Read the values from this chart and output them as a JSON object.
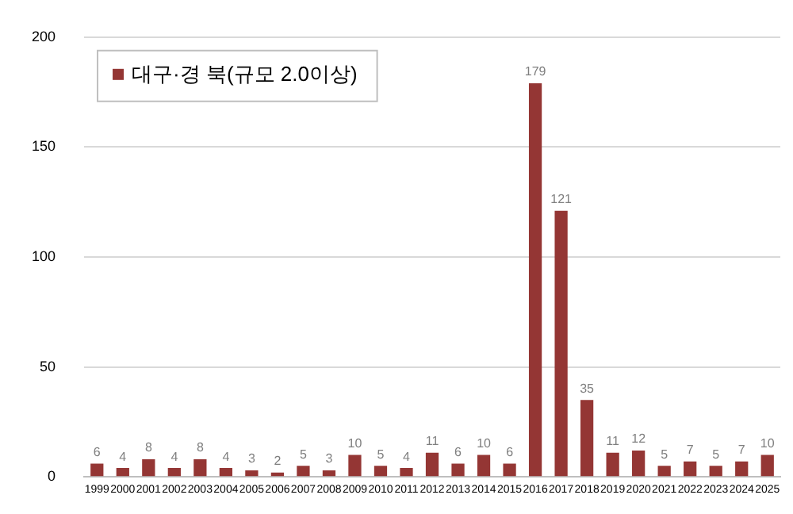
{
  "chart_data": {
    "type": "bar",
    "categories": [
      "1999",
      "2000",
      "2001",
      "2002",
      "2003",
      "2004",
      "2005",
      "2006",
      "2007",
      "2008",
      "2009",
      "2010",
      "2011",
      "2012",
      "2013",
      "2014",
      "2015",
      "2016",
      "2017",
      "2018",
      "2019",
      "2020",
      "2021",
      "2022",
      "2023",
      "2024",
      "2025"
    ],
    "series": [
      {
        "name": "대구·경 북(규모 2.0이상)",
        "color": "#943634",
        "values": [
          6,
          4,
          8,
          4,
          8,
          4,
          3,
          2,
          5,
          3,
          10,
          5,
          4,
          11,
          6,
          10,
          6,
          179,
          121,
          35,
          11,
          12,
          5,
          7,
          5,
          7,
          10
        ]
      }
    ],
    "ylim": [
      0,
      200
    ],
    "yticks": [
      0,
      50,
      100,
      150,
      200
    ],
    "grid": "y",
    "legend": "top left",
    "data_labels": true
  }
}
